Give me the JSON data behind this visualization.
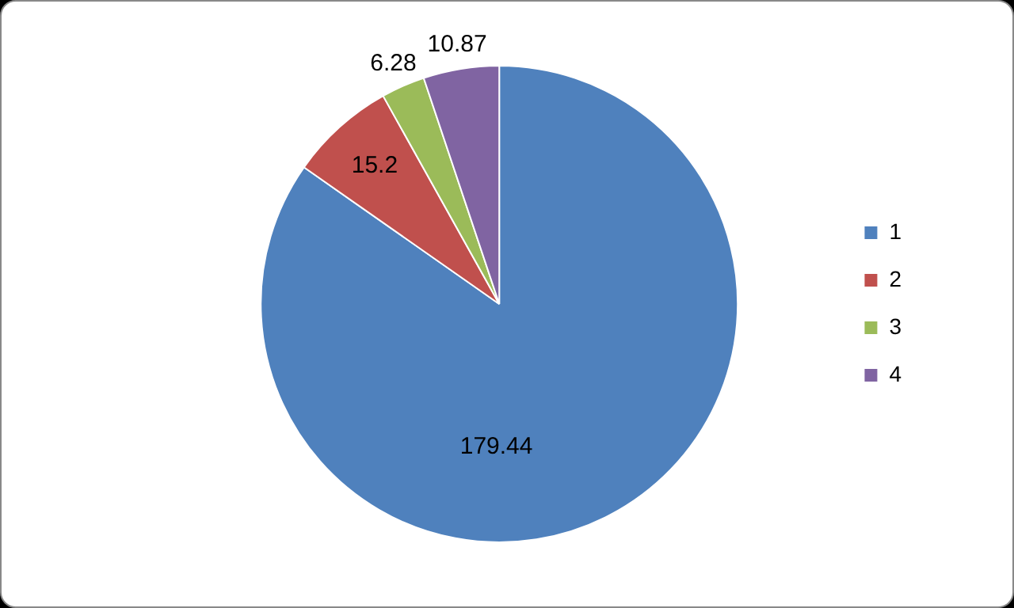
{
  "chart_data": {
    "type": "pie",
    "categories": [
      "1",
      "2",
      "3",
      "4"
    ],
    "values": [
      179.44,
      15.2,
      6.28,
      10.87
    ],
    "colors": [
      "#4f81bd",
      "#c0504d",
      "#9bbb59",
      "#8064a2"
    ],
    "legend": "right",
    "data_labels": true
  }
}
